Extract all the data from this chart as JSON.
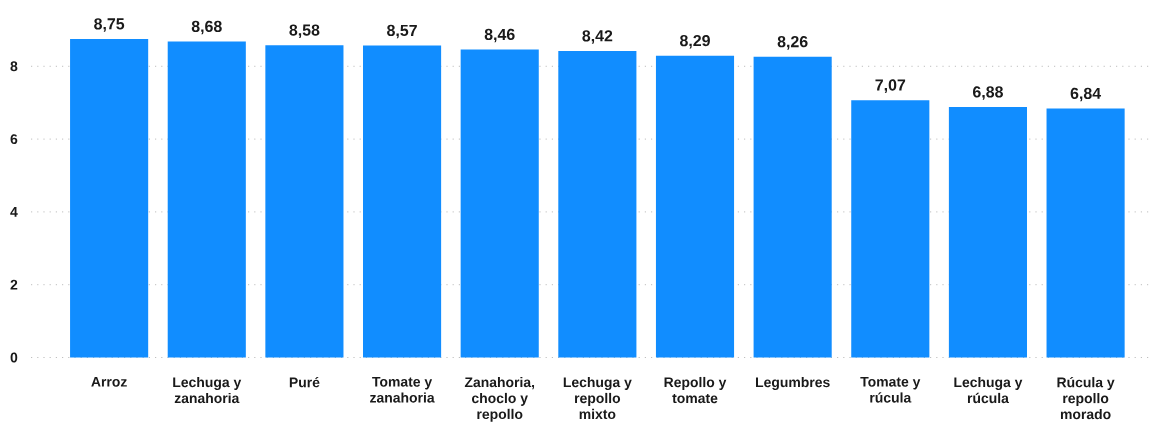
{
  "chart_data": {
    "type": "bar",
    "categories": [
      "Arroz",
      "Lechuga y zanahoria",
      "Puré",
      "Tomate y zanahoria",
      "Zanahoria, choclo y repollo",
      "Lechuga y repollo mixto",
      "Repollo y tomate",
      "Legumbres",
      "Tomate y rúcula",
      "Lechuga y rúcula",
      "Rúcula y repollo morado"
    ],
    "values": [
      8.75,
      8.68,
      8.58,
      8.57,
      8.46,
      8.42,
      8.29,
      8.26,
      7.07,
      6.88,
      6.84
    ],
    "value_labels": [
      "8,75",
      "8,68",
      "8,58",
      "8,57",
      "8,46",
      "8,42",
      "8,29",
      "8,26",
      "7,07",
      "6,88",
      "6,84"
    ],
    "color": "#118dff",
    "ylim": [
      0,
      8.75
    ],
    "yticks": [
      0,
      2,
      4,
      6,
      8
    ],
    "grid": "y"
  }
}
